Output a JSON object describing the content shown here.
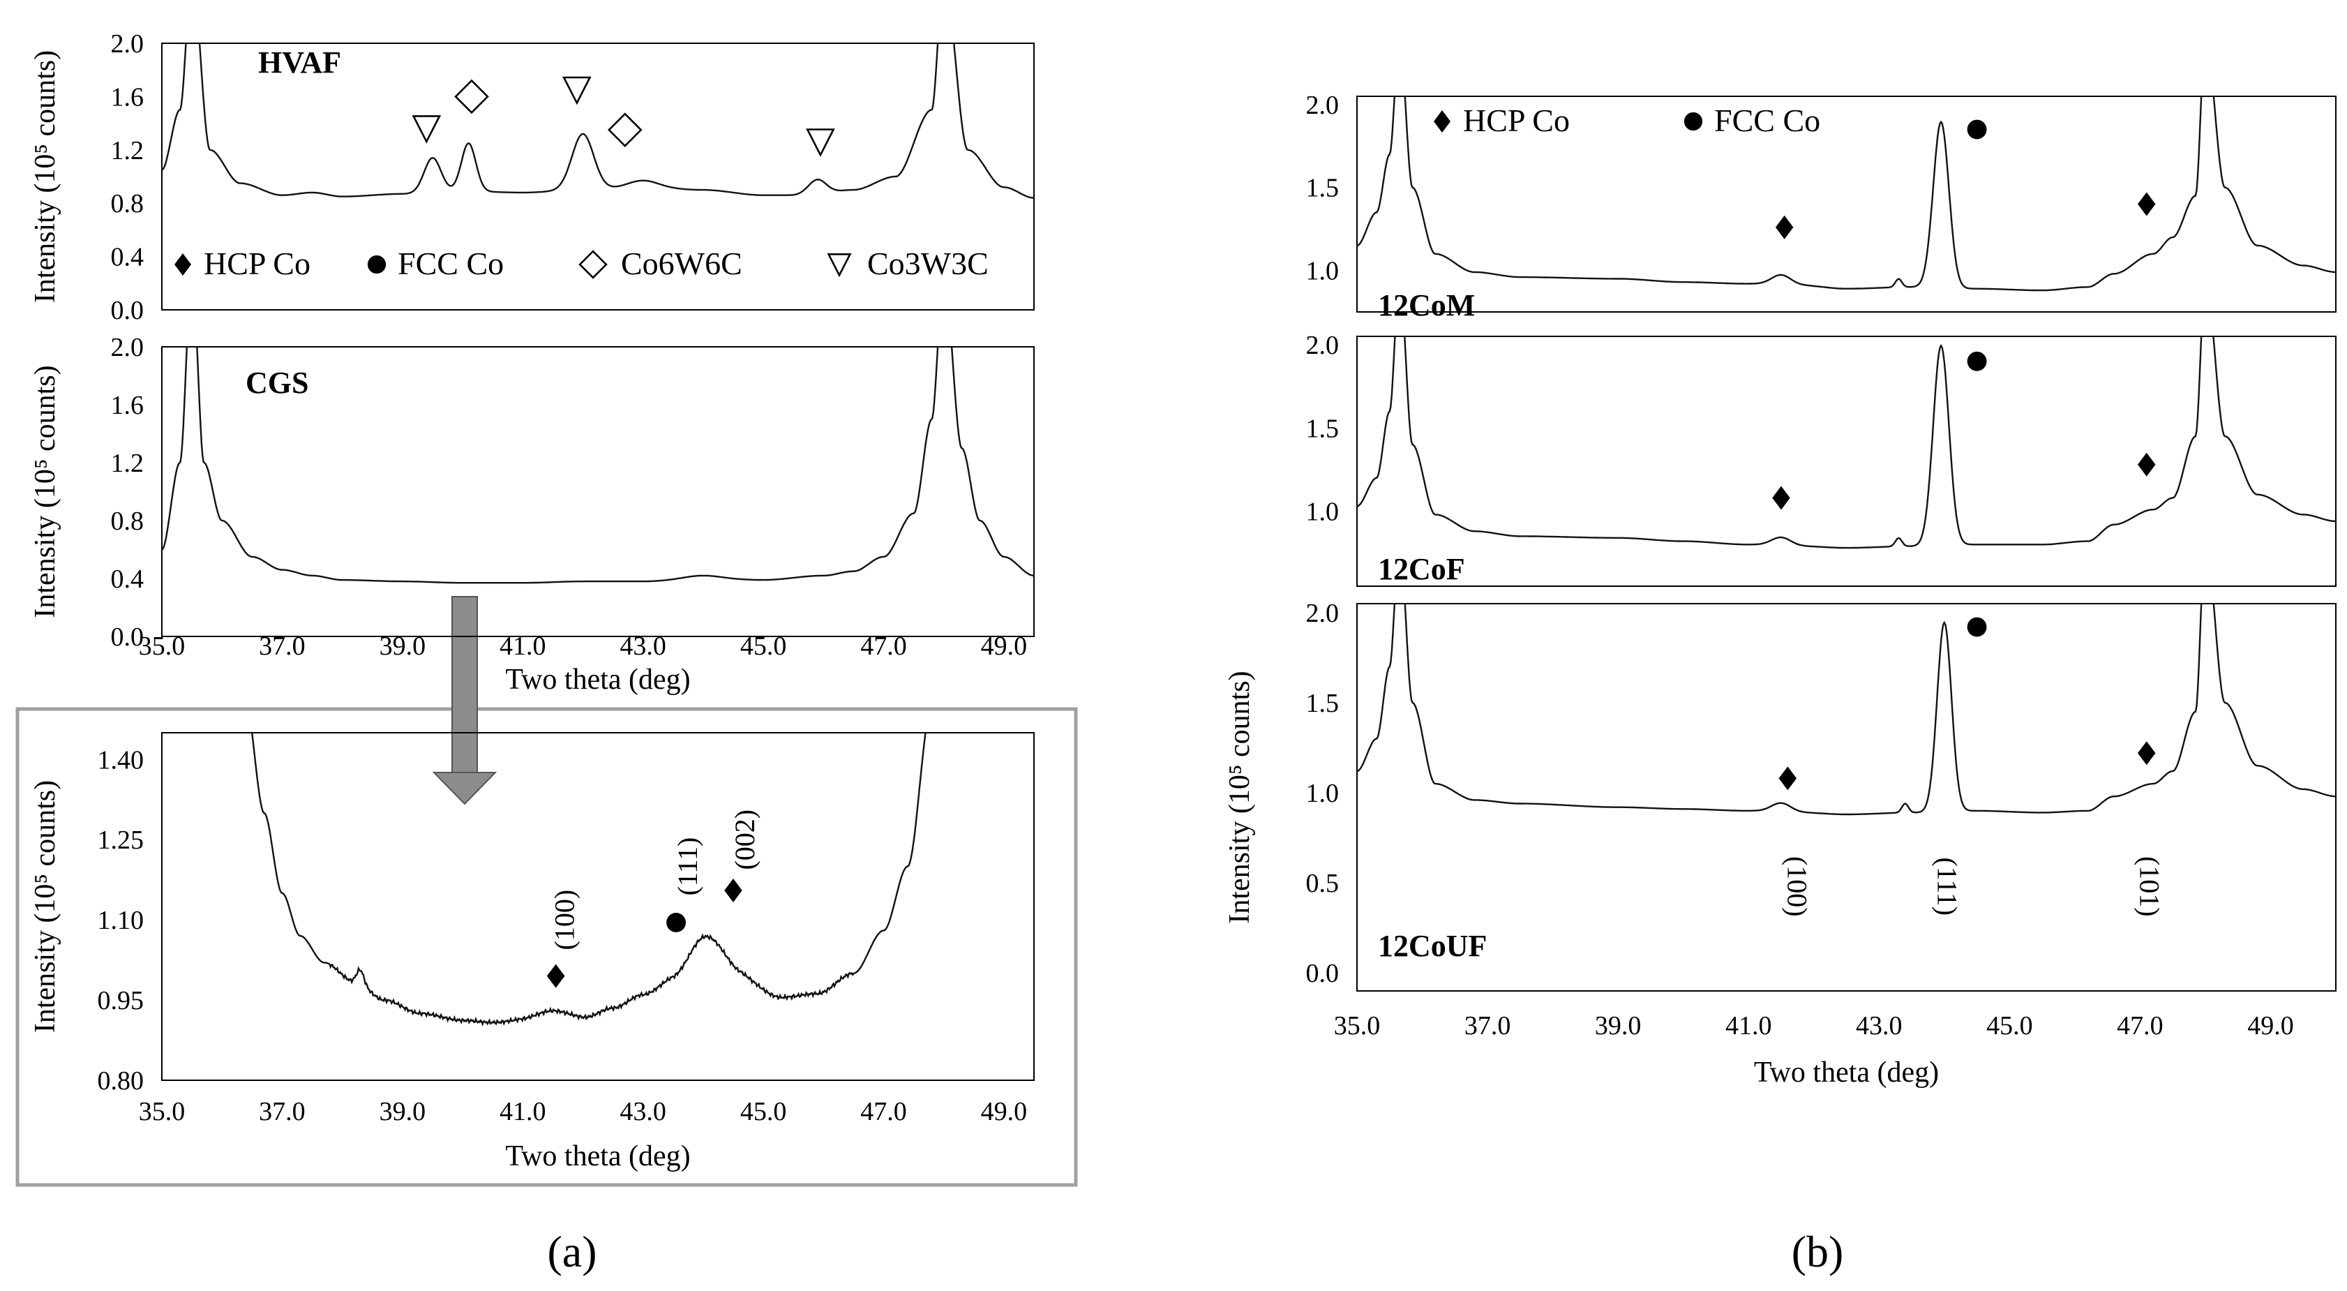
{
  "figure_labels": {
    "a": "(a)",
    "b": "(b)"
  },
  "colors": {
    "curve": "#111111",
    "inset_border": "#a0a0a0",
    "arrow": "#8c8c8c",
    "background": "#ffffff"
  },
  "chart_data": [
    {
      "id": "a_hvaf",
      "type": "line",
      "panel_label": "HVAF",
      "ylabel": "Intensity (10⁵ counts)",
      "xlabel": "",
      "xlim": [
        35,
        49.5
      ],
      "ylim": [
        0,
        2.0
      ],
      "yticks": [
        0.0,
        0.4,
        0.8,
        1.2,
        1.6,
        2.0
      ],
      "ytick_labels": [
        "0.0",
        "0.4",
        "0.8",
        "1.2",
        "1.6",
        "2.0"
      ],
      "baseline": [
        [
          35.0,
          1.05
        ],
        [
          35.3,
          1.5
        ],
        [
          35.5,
          2.5
        ],
        [
          35.8,
          1.2
        ],
        [
          36.3,
          0.95
        ],
        [
          37,
          0.86
        ],
        [
          37.5,
          0.88
        ],
        [
          38,
          0.85
        ],
        [
          39,
          0.87
        ],
        [
          40,
          0.89
        ],
        [
          41,
          0.88
        ],
        [
          42,
          0.9
        ],
        [
          43,
          0.92
        ],
        [
          44,
          0.9
        ],
        [
          45,
          0.86
        ],
        [
          45.5,
          0.86
        ],
        [
          46,
          0.88
        ],
        [
          46.5,
          0.9
        ],
        [
          47.2,
          1.0
        ],
        [
          47.8,
          1.5
        ],
        [
          48.0,
          2.5
        ],
        [
          48.4,
          1.2
        ],
        [
          49,
          0.92
        ],
        [
          49.5,
          0.84
        ]
      ],
      "peaks": [
        [
          39.5,
          0.26,
          0.14
        ],
        [
          40.1,
          0.36,
          0.12
        ],
        [
          42.0,
          0.42,
          0.18
        ],
        [
          43.0,
          0.05,
          0.25
        ],
        [
          45.9,
          0.1,
          0.15
        ]
      ],
      "markers": [
        {
          "shape": "triangle",
          "x": 39.4,
          "y": 1.36
        },
        {
          "shape": "diamond",
          "x": 40.15,
          "y": 1.6
        },
        {
          "shape": "triangle",
          "x": 41.9,
          "y": 1.65
        },
        {
          "shape": "diamond",
          "x": 42.7,
          "y": 1.35
        },
        {
          "shape": "triangle",
          "x": 45.95,
          "y": 1.26
        }
      ],
      "legend": [
        {
          "shape": "diamond-filled",
          "label": "HCP Co"
        },
        {
          "shape": "circle-filled",
          "label": "FCC Co"
        },
        {
          "shape": "diamond",
          "label": "Co6W6C"
        },
        {
          "shape": "triangle",
          "label": "Co3W3C"
        }
      ]
    },
    {
      "id": "a_cgs",
      "type": "line",
      "panel_label": "CGS",
      "ylabel": "Intensity (10⁵ counts)",
      "xlabel": "Two theta (deg)",
      "xlim": [
        35,
        49.5
      ],
      "ylim": [
        0,
        2.0
      ],
      "yticks": [
        0.0,
        0.4,
        0.8,
        1.2,
        1.6,
        2.0
      ],
      "ytick_labels": [
        "0.0",
        "0.4",
        "0.8",
        "1.2",
        "1.6",
        "2.0"
      ],
      "xticks": [
        35,
        37,
        39,
        41,
        43,
        45,
        47,
        49
      ],
      "xtick_labels": [
        "35.0",
        "37.0",
        "39.0",
        "41.0",
        "43.0",
        "45.0",
        "47.0",
        "49.0"
      ],
      "baseline": [
        [
          35.0,
          0.6
        ],
        [
          35.3,
          1.2
        ],
        [
          35.5,
          2.5
        ],
        [
          35.7,
          1.2
        ],
        [
          36.0,
          0.8
        ],
        [
          36.5,
          0.55
        ],
        [
          37,
          0.46
        ],
        [
          37.5,
          0.42
        ],
        [
          38,
          0.39
        ],
        [
          39,
          0.38
        ],
        [
          40,
          0.37
        ],
        [
          41,
          0.37
        ],
        [
          42,
          0.38
        ],
        [
          43,
          0.38
        ],
        [
          44,
          0.4
        ],
        [
          45,
          0.39
        ],
        [
          46,
          0.42
        ],
        [
          46.5,
          0.45
        ],
        [
          47,
          0.55
        ],
        [
          47.5,
          0.85
        ],
        [
          47.8,
          1.5
        ],
        [
          48.0,
          2.5
        ],
        [
          48.3,
          1.3
        ],
        [
          48.6,
          0.8
        ],
        [
          49,
          0.55
        ],
        [
          49.5,
          0.42
        ]
      ],
      "peaks": [
        [
          44.0,
          0.02,
          0.3
        ]
      ]
    },
    {
      "id": "a_inset",
      "type": "line",
      "panel_label": "",
      "ylabel": "Intensity (10⁵ counts)",
      "xlabel": "Two theta (deg)",
      "xlim": [
        35,
        49.5
      ],
      "ylim": [
        0.8,
        1.45
      ],
      "yticks": [
        0.8,
        0.95,
        1.1,
        1.25,
        1.4
      ],
      "ytick_labels": [
        "0.80",
        "0.95",
        "1.10",
        "1.25",
        "1.40"
      ],
      "xticks": [
        35,
        37,
        39,
        41,
        43,
        45,
        47,
        49
      ],
      "xtick_labels": [
        "35.0",
        "37.0",
        "39.0",
        "41.0",
        "43.0",
        "45.0",
        "47.0",
        "49.0"
      ],
      "baseline": [
        [
          36.4,
          1.5
        ],
        [
          36.7,
          1.3
        ],
        [
          37.0,
          1.15
        ],
        [
          37.3,
          1.07
        ],
        [
          37.7,
          1.02
        ],
        [
          38.2,
          0.985
        ],
        [
          38.7,
          0.95
        ],
        [
          39.3,
          0.925
        ],
        [
          40,
          0.912
        ],
        [
          40.5,
          0.908
        ],
        [
          41,
          0.912
        ],
        [
          41.5,
          0.918
        ],
        [
          42,
          0.915
        ],
        [
          42.5,
          0.935
        ],
        [
          43,
          0.96
        ],
        [
          43.5,
          0.985
        ],
        [
          44,
          1.02
        ],
        [
          44.6,
          0.99
        ],
        [
          45.3,
          0.955
        ],
        [
          45.9,
          0.962
        ],
        [
          46.5,
          1.0
        ],
        [
          47,
          1.08
        ],
        [
          47.4,
          1.2
        ],
        [
          47.8,
          1.5
        ]
      ],
      "peaks": [
        [
          38.3,
          0.025,
          0.06
        ],
        [
          41.5,
          0.012,
          0.3
        ],
        [
          44.1,
          0.05,
          0.32
        ]
      ],
      "markers": [
        {
          "shape": "diamond-filled",
          "x": 41.55,
          "y": 0.995
        },
        {
          "shape": "circle-filled",
          "x": 43.55,
          "y": 1.095
        },
        {
          "shape": "diamond-filled",
          "x": 44.5,
          "y": 1.155
        }
      ],
      "annotations": [
        {
          "text": "(100)",
          "x": 41.85,
          "y": 1.1,
          "rotate": -90
        },
        {
          "text": "(111)",
          "x": 43.9,
          "y": 1.2,
          "rotate": -90
        },
        {
          "text": "(002)",
          "x": 44.85,
          "y": 1.25,
          "rotate": -90
        }
      ]
    },
    {
      "id": "b_12com",
      "type": "line",
      "panel_label": "12CoM",
      "ylabel": "",
      "xlabel": "",
      "xlim": [
        35,
        50
      ],
      "ylim": [
        0.75,
        2.05
      ],
      "yticks": [
        1.0,
        1.5,
        2.0
      ],
      "ytick_labels": [
        "1.0",
        "1.5",
        "2.0"
      ],
      "baseline": [
        [
          35,
          1.15
        ],
        [
          35.3,
          1.35
        ],
        [
          35.5,
          1.7
        ],
        [
          35.65,
          2.4
        ],
        [
          35.85,
          1.5
        ],
        [
          36.2,
          1.1
        ],
        [
          36.8,
          0.99
        ],
        [
          37.5,
          0.96
        ],
        [
          39,
          0.95
        ],
        [
          40,
          0.93
        ],
        [
          41,
          0.92
        ],
        [
          41.8,
          0.91
        ],
        [
          42.5,
          0.89
        ],
        [
          43.5,
          0.9
        ],
        [
          44.5,
          0.89
        ],
        [
          45.5,
          0.88
        ],
        [
          46.2,
          0.9
        ],
        [
          46.6,
          0.98
        ],
        [
          47.2,
          1.1
        ],
        [
          47.5,
          1.2
        ],
        [
          47.85,
          1.45
        ],
        [
          48.0,
          2.4
        ],
        [
          48.3,
          1.5
        ],
        [
          48.8,
          1.15
        ],
        [
          49.5,
          1.03
        ],
        [
          50,
          0.99
        ]
      ],
      "peaks": [
        [
          41.5,
          0.06,
          0.15
        ],
        [
          43.3,
          0.05,
          0.05
        ],
        [
          43.95,
          1.0,
          0.12
        ]
      ],
      "markers": [
        {
          "shape": "diamond-filled",
          "x": 41.55,
          "y": 1.26
        },
        {
          "shape": "circle-filled",
          "x": 44.5,
          "y": 1.85
        },
        {
          "shape": "diamond-filled",
          "x": 47.1,
          "y": 1.4
        }
      ],
      "legend": [
        {
          "shape": "diamond-filled",
          "label": "HCP Co"
        },
        {
          "shape": "circle-filled",
          "label": "FCC Co"
        }
      ]
    },
    {
      "id": "b_12cof",
      "type": "line",
      "panel_label": "12CoF",
      "ylabel": "",
      "xlabel": "",
      "xlim": [
        35,
        50
      ],
      "ylim": [
        0.55,
        2.05
      ],
      "yticks": [
        1.0,
        1.5,
        2.0
      ],
      "ytick_labels": [
        "1.0",
        "1.5",
        "2.0"
      ],
      "baseline": [
        [
          35,
          1.03
        ],
        [
          35.3,
          1.2
        ],
        [
          35.5,
          1.6
        ],
        [
          35.65,
          2.4
        ],
        [
          35.85,
          1.4
        ],
        [
          36.2,
          0.98
        ],
        [
          36.8,
          0.88
        ],
        [
          37.5,
          0.85
        ],
        [
          39,
          0.84
        ],
        [
          40,
          0.82
        ],
        [
          41,
          0.8
        ],
        [
          41.8,
          0.79
        ],
        [
          42.5,
          0.78
        ],
        [
          43.5,
          0.79
        ],
        [
          44.5,
          0.8
        ],
        [
          45.5,
          0.8
        ],
        [
          46.2,
          0.82
        ],
        [
          46.6,
          0.92
        ],
        [
          47.2,
          1.01
        ],
        [
          47.5,
          1.08
        ],
        [
          47.85,
          1.45
        ],
        [
          48.0,
          2.4
        ],
        [
          48.3,
          1.45
        ],
        [
          48.8,
          1.1
        ],
        [
          49.5,
          0.98
        ],
        [
          50,
          0.94
        ]
      ],
      "peaks": [
        [
          41.5,
          0.05,
          0.15
        ],
        [
          43.3,
          0.05,
          0.05
        ],
        [
          43.95,
          1.2,
          0.12
        ]
      ],
      "markers": [
        {
          "shape": "diamond-filled",
          "x": 41.5,
          "y": 1.08
        },
        {
          "shape": "circle-filled",
          "x": 44.5,
          "y": 1.9
        },
        {
          "shape": "diamond-filled",
          "x": 47.1,
          "y": 1.28
        }
      ]
    },
    {
      "id": "b_12couf",
      "type": "line",
      "panel_label": "12CoUF",
      "ylabel": "Intensity (10⁵ counts)",
      "xlabel": "Two theta (deg)",
      "xlim": [
        35,
        50
      ],
      "ylim": [
        -0.1,
        2.05
      ],
      "yticks": [
        0.0,
        0.5,
        1.0,
        1.5,
        2.0
      ],
      "ytick_labels": [
        "0.0",
        "0.5",
        "1.0",
        "1.5",
        "2.0"
      ],
      "xticks": [
        35,
        37,
        39,
        41,
        43,
        45,
        47,
        49
      ],
      "xtick_labels": [
        "35.0",
        "37.0",
        "39.0",
        "41.0",
        "43.0",
        "45.0",
        "47.0",
        "49.0"
      ],
      "baseline": [
        [
          35,
          1.12
        ],
        [
          35.3,
          1.3
        ],
        [
          35.5,
          1.7
        ],
        [
          35.65,
          2.4
        ],
        [
          35.85,
          1.5
        ],
        [
          36.2,
          1.05
        ],
        [
          36.8,
          0.96
        ],
        [
          37.5,
          0.94
        ],
        [
          39,
          0.92
        ],
        [
          40,
          0.91
        ],
        [
          41,
          0.9
        ],
        [
          41.8,
          0.89
        ],
        [
          42.5,
          0.88
        ],
        [
          43.5,
          0.89
        ],
        [
          44.5,
          0.9
        ],
        [
          45.5,
          0.89
        ],
        [
          46.2,
          0.9
        ],
        [
          46.6,
          0.98
        ],
        [
          47.2,
          1.05
        ],
        [
          47.5,
          1.12
        ],
        [
          47.85,
          1.45
        ],
        [
          48.0,
          2.4
        ],
        [
          48.3,
          1.5
        ],
        [
          48.8,
          1.15
        ],
        [
          49.5,
          1.02
        ],
        [
          50,
          0.98
        ]
      ],
      "peaks": [
        [
          41.5,
          0.05,
          0.15
        ],
        [
          43.4,
          0.05,
          0.05
        ],
        [
          44.0,
          1.05,
          0.11
        ]
      ],
      "markers": [
        {
          "shape": "diamond-filled",
          "x": 41.6,
          "y": 1.08
        },
        {
          "shape": "circle-filled",
          "x": 44.5,
          "y": 1.92
        },
        {
          "shape": "diamond-filled",
          "x": 47.1,
          "y": 1.22
        }
      ],
      "annotations": [
        {
          "text": "(100)",
          "x": 41.6,
          "y": 0.48,
          "rotate": 90
        },
        {
          "text": "(111)",
          "x": 43.9,
          "y": 0.48,
          "rotate": 90
        },
        {
          "text": "(101)",
          "x": 47.0,
          "y": 0.48,
          "rotate": 90
        }
      ]
    }
  ]
}
